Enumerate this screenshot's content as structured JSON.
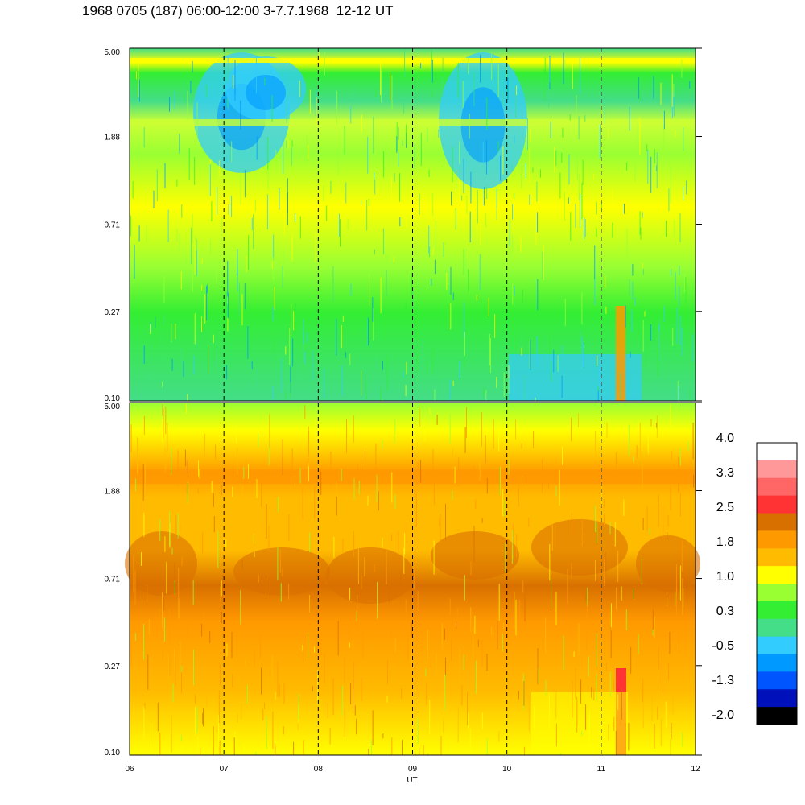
{
  "title": "1968 0705 (187) 06:00-12:00 3-7.7.1968  12-12 UT",
  "chart_data": [
    {
      "type": "heatmap",
      "panel": "upper",
      "x_range": [
        "06",
        "12"
      ],
      "y_scale": "log",
      "y_range": [
        0.1,
        5.0
      ],
      "y_ticks": [
        "5.00",
        "1.88",
        "0.71",
        "0.27",
        "0.10"
      ],
      "x_ticks": [
        "06",
        "07",
        "08",
        "09",
        "10",
        "11",
        "12"
      ],
      "dashed_verticals_at": [
        "07",
        "08",
        "09",
        "10",
        "11"
      ],
      "dominant_levels": [
        "green",
        "cyan",
        "yellow"
      ]
    },
    {
      "type": "heatmap",
      "panel": "lower",
      "x_range": [
        "06",
        "12"
      ],
      "y_scale": "log",
      "y_range": [
        0.1,
        5.0
      ],
      "y_ticks": [
        "5.00",
        "1.88",
        "0.71",
        "0.27",
        "0.10"
      ],
      "x_ticks": [
        "06",
        "07",
        "08",
        "09",
        "10",
        "11",
        "12"
      ],
      "xlabel": "UT",
      "dashed_verticals_at": [
        "07",
        "08",
        "09",
        "10",
        "11"
      ],
      "dominant_levels": [
        "orange",
        "yellow",
        "dark orange"
      ]
    }
  ],
  "colorbar": {
    "labels": [
      "4.0",
      "3.3",
      "2.5",
      "1.8",
      "1.0",
      "0.3",
      "-0.5",
      "-1.3",
      "-2.0"
    ],
    "colors": [
      "#ffffff",
      "#ff9999",
      "#ff6666",
      "#ff3333",
      "#d87000",
      "#ff9900",
      "#ffbb00",
      "#ffff00",
      "#99ff33",
      "#33ee33",
      "#44dd88",
      "#33ccff",
      "#0099ff",
      "#0055ff",
      "#0011bb",
      "#000000"
    ]
  }
}
